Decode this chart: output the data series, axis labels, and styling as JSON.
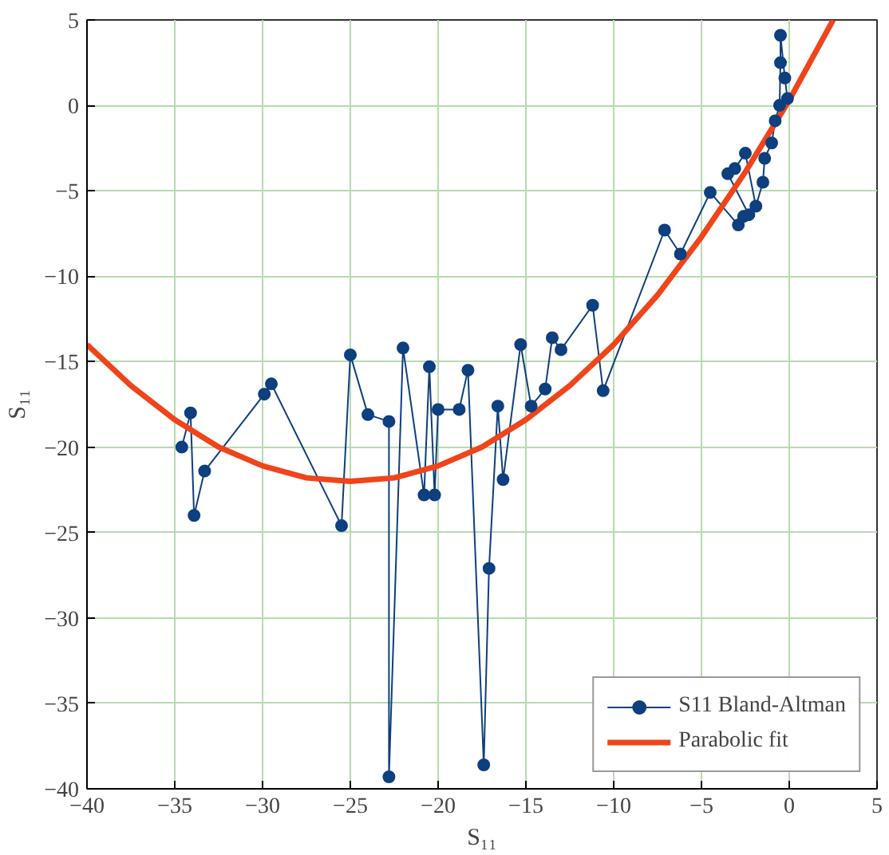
{
  "chart_data": {
    "type": "line",
    "xlabel": "S₁₁",
    "ylabel": "S₁₁",
    "xlim": [
      -40,
      5
    ],
    "ylim": [
      -40,
      5
    ],
    "xticks": [
      -40,
      -35,
      -30,
      -25,
      -20,
      -15,
      -10,
      -5,
      0,
      5
    ],
    "yticks": [
      -40,
      -35,
      -30,
      -25,
      -20,
      -15,
      -10,
      -5,
      0,
      5
    ],
    "grid": true,
    "legend": "bottom right",
    "line_style": "solid",
    "series": [
      {
        "name": "S11 Bland-Altman",
        "color": "#0e3f7e",
        "marker": "circle",
        "x": [
          -34.6,
          -34.1,
          -33.9,
          -33.3,
          -29.9,
          -29.5,
          -25.5,
          -25.0,
          -24.0,
          -22.8,
          -22.8,
          -22.0,
          -20.8,
          -20.5,
          -20.2,
          -20.0,
          -18.8,
          -18.3,
          -17.4,
          -17.1,
          -16.6,
          -16.3,
          -15.3,
          -14.7,
          -13.9,
          -13.5,
          -13.0,
          -11.2,
          -10.6,
          -7.1,
          -6.2,
          -4.5,
          -2.9,
          -2.6,
          -2.3,
          -3.5,
          -3.1,
          -2.5,
          -1.9,
          -1.5,
          -1.4,
          -1.0,
          -0.8,
          -0.55,
          -0.5,
          -0.5,
          -0.25,
          -0.1
        ],
        "values": [
          -20.0,
          -18.0,
          -24.0,
          -21.4,
          -16.9,
          -16.3,
          -24.6,
          -14.6,
          -18.1,
          -18.5,
          -39.3,
          -14.2,
          -22.8,
          -15.3,
          -22.8,
          -17.8,
          -17.8,
          -15.5,
          -38.6,
          -27.1,
          -17.6,
          -21.9,
          -14.0,
          -17.6,
          -16.6,
          -13.6,
          -14.3,
          -11.7,
          -16.7,
          -7.3,
          -8.7,
          -5.1,
          -7.0,
          -6.5,
          -6.4,
          -4.0,
          -3.7,
          -2.8,
          -5.9,
          -4.5,
          -3.1,
          -2.2,
          -0.9,
          0.0,
          2.5,
          4.1,
          1.6,
          0.4
        ]
      },
      {
        "name": "Parabolic fit",
        "color": "#f0441a",
        "marker": "none",
        "x": [
          -40,
          -37.5,
          -35,
          -32.5,
          -30,
          -27.5,
          -25,
          -22.5,
          -20,
          -17.5,
          -15,
          -12.5,
          -10,
          -7.5,
          -5,
          -2.5,
          0,
          2.5
        ],
        "values": [
          -14.0,
          -16.4,
          -18.4,
          -20.0,
          -21.1,
          -21.8,
          -22.0,
          -21.8,
          -21.1,
          -20.0,
          -18.4,
          -16.4,
          -14.0,
          -11.1,
          -7.7,
          -3.9,
          0.3,
          5.0
        ]
      }
    ]
  }
}
